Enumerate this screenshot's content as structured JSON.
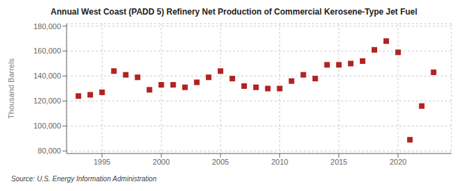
{
  "chart_data": {
    "type": "scatter",
    "title": "Annual West Coast (PADD 5) Refinery Net Production of Commercial Kerosene-Type Jet Fuel",
    "ylabel": "Thousand Barrels",
    "annotation": "Source: U.S. Energy Information Administration",
    "color": "#b22222",
    "marker": "square",
    "grid": true,
    "x": [
      1993,
      1994,
      1995,
      1996,
      1997,
      1998,
      1999,
      2000,
      2001,
      2002,
      2003,
      2004,
      2005,
      2006,
      2007,
      2008,
      2009,
      2010,
      2011,
      2012,
      2013,
      2014,
      2015,
      2016,
      2017,
      2018,
      2019,
      2020,
      2021,
      2022,
      2023
    ],
    "values": [
      124000,
      125000,
      127000,
      144000,
      141000,
      139000,
      129000,
      133000,
      133000,
      131000,
      135000,
      139000,
      144000,
      138000,
      132000,
      131000,
      130000,
      130000,
      136000,
      141000,
      138000,
      149000,
      149000,
      150000,
      152000,
      161000,
      168000,
      159000,
      89000,
      116000,
      143000
    ],
    "xlim": [
      1992,
      2024.5
    ],
    "xticks": [
      1995,
      2000,
      2005,
      2010,
      2015,
      2020
    ],
    "ylim": [
      78000,
      182000
    ],
    "yticks": [
      {
        "value": 80000,
        "label": "80,000"
      },
      {
        "value": 100000,
        "label": "100,000"
      },
      {
        "value": 120000,
        "label": "120,000"
      },
      {
        "value": 140000,
        "label": "140,000"
      },
      {
        "value": 160000,
        "label": "160,000"
      },
      {
        "value": 180000,
        "label": "180,000"
      }
    ]
  }
}
